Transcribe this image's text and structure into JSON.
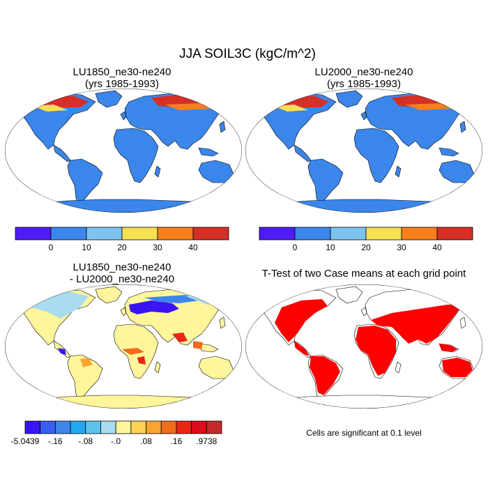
{
  "figure": {
    "title": "JJA SOIL3C (kgC/m^2)"
  },
  "chart_data": [
    {
      "type": "heatmap",
      "panel": "top-left",
      "title_lines": [
        "LU1850_ne30-ne240",
        "(yrs 1985-1993)"
      ],
      "projection": "Robinson world map",
      "colorbar": {
        "colors": [
          "#4f1cf5",
          "#3b86eb",
          "#7ec3ed",
          "#f8e054",
          "#f77f1d",
          "#d62f27"
        ],
        "tick_labels": [
          "0",
          "10",
          "20",
          "30",
          "40"
        ]
      },
      "hotspots": [
        "Alaska / northern Canada high (30-40+)",
        "Northern Eurasia high (30-40+)"
      ]
    },
    {
      "type": "heatmap",
      "panel": "top-right",
      "title_lines": [
        "LU2000_ne30-ne240",
        "(yrs 1985-1993)"
      ],
      "projection": "Robinson world map",
      "colorbar": {
        "colors": [
          "#4f1cf5",
          "#3b86eb",
          "#7ec3ed",
          "#f8e054",
          "#f77f1d",
          "#d62f27"
        ],
        "tick_labels": [
          "0",
          "10",
          "20",
          "30",
          "40"
        ]
      },
      "hotspots": [
        "Alaska / northern Canada high (30-40+)",
        "Northern Eurasia high (30-40+)"
      ]
    },
    {
      "type": "heatmap",
      "panel": "bottom-left",
      "title_lines": [
        "LU1850_ne30-ne240",
        "- LU2000_ne30-ne240"
      ],
      "projection": "Robinson world map",
      "colorbar": {
        "colors": [
          "#3a14f2",
          "#3a5ef0",
          "#3f86ea",
          "#22a8f0",
          "#5cc3ef",
          "#a9dcef",
          "#fff59b",
          "#fed254",
          "#f9a531",
          "#f06d1c",
          "#e82616",
          "#dd0c1a",
          "#c6292b"
        ],
        "tick_labels": [
          "-5.0439",
          "-.16",
          "-.08",
          "-.0",
          ".08",
          ".16",
          ".9738"
        ]
      },
      "hotspots": [
        "Europe / western Russia strongly negative",
        "Tropics scattered positive"
      ]
    },
    {
      "type": "heatmap",
      "panel": "bottom-right",
      "title_lines": [
        "T-Test of two Case means at each grid point"
      ],
      "projection": "Robinson world map",
      "significance_color": "#ff0000",
      "note": "Cells are significant at 0.1 level"
    }
  ]
}
